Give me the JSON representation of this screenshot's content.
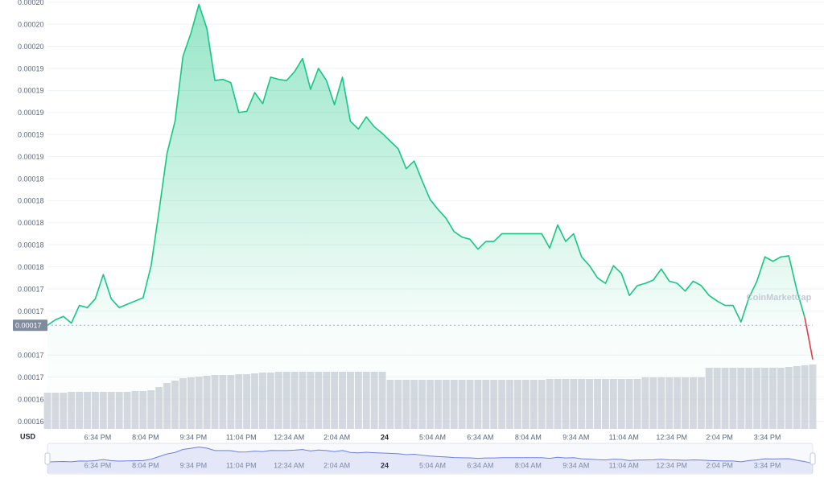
{
  "chart_data": {
    "type": "line",
    "color": "#16c784",
    "down_color": "#ea3943",
    "volume_color": "#c7cbd6",
    "navigator_color": "#6d7fe0",
    "currency_label": "USD",
    "watermark": "CoinMarketCap",
    "reference_price": {
      "value": 0.0001702,
      "label": "0.00017"
    },
    "ylim": [
      0.0001608,
      0.0001997
    ],
    "yticks": [
      {
        "value": 0.0001995,
        "label": "0.00020"
      },
      {
        "value": 0.0001975,
        "label": "0.00020"
      },
      {
        "value": 0.0001955,
        "label": "0.00020"
      },
      {
        "value": 0.0001935,
        "label": "0.00019"
      },
      {
        "value": 0.0001915,
        "label": "0.00019"
      },
      {
        "value": 0.0001895,
        "label": "0.00019"
      },
      {
        "value": 0.0001875,
        "label": "0.00019"
      },
      {
        "value": 0.0001855,
        "label": "0.00019"
      },
      {
        "value": 0.0001835,
        "label": "0.00018"
      },
      {
        "value": 0.0001815,
        "label": "0.00018"
      },
      {
        "value": 0.0001795,
        "label": "0.00018"
      },
      {
        "value": 0.0001775,
        "label": "0.00018"
      },
      {
        "value": 0.0001755,
        "label": "0.00018"
      },
      {
        "value": 0.0001735,
        "label": "0.00017"
      },
      {
        "value": 0.0001715,
        "label": "0.00017"
      },
      {
        "value": 0.0001675,
        "label": "0.00017"
      },
      {
        "value": 0.0001655,
        "label": "0.00017"
      },
      {
        "value": 0.0001635,
        "label": "0.00016"
      },
      {
        "value": 0.0001615,
        "label": "0.00016"
      }
    ],
    "grid": true,
    "categories": [
      null,
      null,
      null,
      null,
      null,
      null,
      "6:34 PM",
      null,
      null,
      null,
      null,
      null,
      "8:04 PM",
      null,
      null,
      null,
      null,
      null,
      "9:34 PM",
      null,
      null,
      null,
      null,
      null,
      "11:04 PM",
      null,
      null,
      null,
      null,
      null,
      "12:34 AM",
      null,
      null,
      null,
      null,
      null,
      "2:04 AM",
      null,
      null,
      null,
      null,
      null,
      "24",
      null,
      null,
      null,
      null,
      null,
      "5:04 AM",
      null,
      null,
      null,
      null,
      null,
      "6:34 AM",
      null,
      null,
      null,
      null,
      null,
      "8:04 AM",
      null,
      null,
      null,
      null,
      null,
      "9:34 AM",
      null,
      null,
      null,
      null,
      null,
      "11:04 AM",
      null,
      null,
      null,
      null,
      null,
      "12:34 PM",
      null,
      null,
      null,
      null,
      null,
      "2:04 PM",
      null,
      null,
      null,
      null,
      null,
      "3:34 PM",
      null,
      null,
      null,
      null,
      null,
      null
    ],
    "values": [
      0.0001702,
      0.0001707,
      0.000171,
      0.0001704,
      0.000172,
      0.0001718,
      0.0001726,
      0.0001748,
      0.0001726,
      0.0001718,
      0.0001721,
      0.0001724,
      0.0001727,
      0.0001756,
      0.0001806,
      0.0001858,
      0.0001887,
      0.0001946,
      0.0001967,
      0.0001993,
      0.0001971,
      0.0001924,
      0.0001925,
      0.0001922,
      0.0001895,
      0.0001896,
      0.0001913,
      0.0001903,
      0.0001927,
      0.0001925,
      0.0001924,
      0.0001932,
      0.0001944,
      0.0001916,
      0.0001935,
      0.0001924,
      0.0001902,
      0.0001927,
      0.0001887,
      0.000188,
      0.0001891,
      0.0001882,
      0.0001876,
      0.0001869,
      0.0001862,
      0.0001844,
      0.0001851,
      0.0001833,
      0.0001816,
      0.0001807,
      0.0001799,
      0.0001787,
      0.0001782,
      0.000178,
      0.0001771,
      0.0001778,
      0.0001778,
      0.0001785,
      0.0001785,
      0.0001785,
      0.0001785,
      0.0001785,
      0.0001785,
      0.0001772,
      0.0001793,
      0.0001778,
      0.0001785,
      0.0001764,
      0.0001756,
      0.0001745,
      0.000174,
      0.0001756,
      0.0001749,
      0.0001729,
      0.0001738,
      0.000174,
      0.0001743,
      0.0001753,
      0.0001742,
      0.000174,
      0.0001733,
      0.0001742,
      0.0001738,
      0.0001729,
      0.0001724,
      0.000172,
      0.000172,
      0.0001705,
      0.0001727,
      0.0001742,
      0.0001764,
      0.000176,
      0.0001764,
      0.0001765,
      0.0001734,
      0.0001709,
      0.0001671
    ],
    "volume": {
      "values": [
        45,
        45,
        45,
        46,
        46,
        46,
        46,
        46,
        46,
        46,
        46,
        47,
        47,
        48,
        52,
        57,
        60,
        63,
        64,
        65,
        66,
        67,
        67,
        67,
        68,
        68,
        69,
        70,
        70,
        71,
        71,
        71,
        71,
        71,
        71,
        71,
        71,
        71,
        71,
        71,
        71,
        71,
        71,
        61,
        61,
        61,
        61,
        61,
        61,
        61,
        61,
        61,
        61,
        61,
        61,
        61,
        61,
        61,
        61,
        61,
        61,
        61,
        61,
        62,
        62,
        62,
        62,
        62,
        62,
        62,
        62,
        62,
        62,
        62,
        62,
        64,
        64,
        64,
        64,
        64,
        64,
        64,
        64,
        76,
        76,
        76,
        76,
        76,
        76,
        76,
        76,
        76,
        76,
        77,
        78,
        79,
        80
      ],
      "max": 140
    }
  }
}
